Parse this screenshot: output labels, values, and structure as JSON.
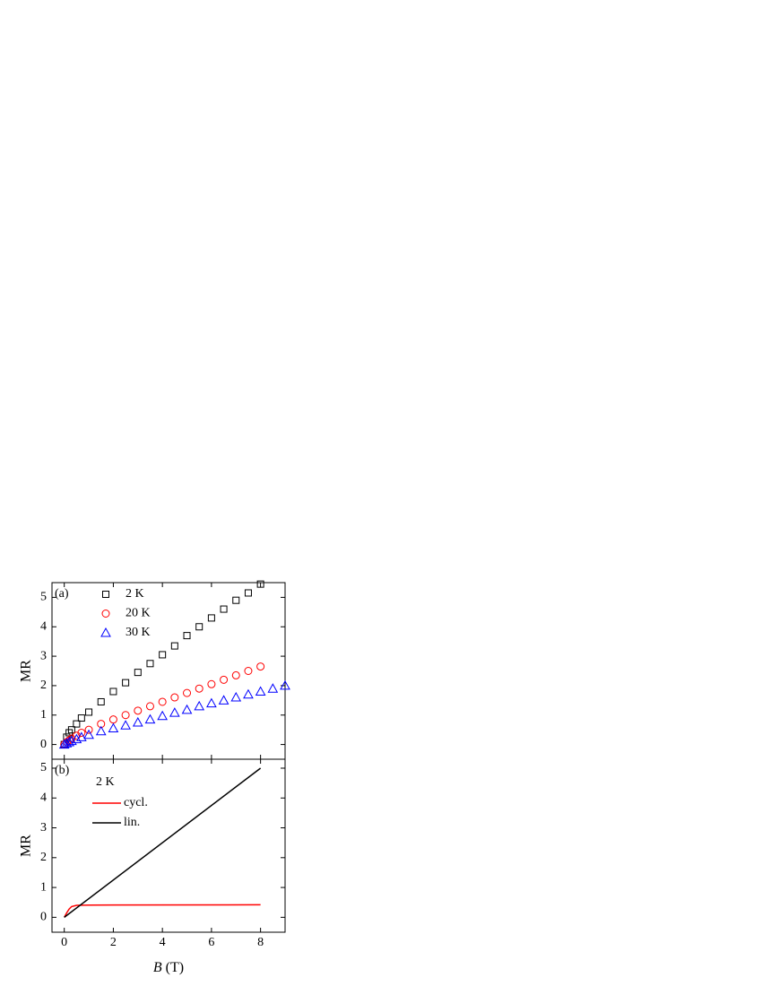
{
  "chart_data": [
    {
      "type": "scatter",
      "panel_label": "(a)",
      "ylabel": "MR",
      "xlim": [
        -0.5,
        9
      ],
      "ylim": [
        -0.5,
        5.5
      ],
      "xticks": [
        0,
        2,
        4,
        6,
        8
      ],
      "yticks": [
        0,
        1,
        2,
        3,
        4,
        5
      ],
      "series": [
        {
          "name": "2 K",
          "color": "#000000",
          "marker": "square",
          "x": [
            0,
            0.1,
            0.2,
            0.3,
            0.5,
            0.7,
            1,
            1.5,
            2,
            2.5,
            3,
            3.5,
            4,
            4.5,
            5,
            5.5,
            6,
            6.5,
            7,
            7.5,
            8
          ],
          "values": [
            0,
            0.25,
            0.4,
            0.5,
            0.7,
            0.9,
            1.1,
            1.45,
            1.8,
            2.1,
            2.45,
            2.75,
            3.05,
            3.35,
            3.7,
            4.0,
            4.3,
            4.6,
            4.9,
            5.15,
            5.45
          ]
        },
        {
          "name": "20 K",
          "color": "#ff0000",
          "marker": "circle",
          "x": [
            0,
            0.1,
            0.2,
            0.3,
            0.5,
            0.7,
            1,
            1.5,
            2,
            2.5,
            3,
            3.5,
            4,
            4.5,
            5,
            5.5,
            6,
            6.5,
            7,
            7.5,
            8
          ],
          "values": [
            0,
            0.08,
            0.14,
            0.2,
            0.3,
            0.4,
            0.5,
            0.7,
            0.85,
            1.0,
            1.15,
            1.3,
            1.45,
            1.6,
            1.75,
            1.9,
            2.05,
            2.2,
            2.35,
            2.5,
            2.65
          ]
        },
        {
          "name": "30 K",
          "color": "#0000ff",
          "marker": "triangle",
          "x": [
            0,
            0.1,
            0.2,
            0.3,
            0.5,
            0.7,
            1,
            1.5,
            2,
            2.5,
            3,
            3.5,
            4,
            4.5,
            5,
            5.5,
            6,
            6.5,
            7,
            7.5,
            8,
            8.5,
            9
          ],
          "values": [
            0,
            0.04,
            0.08,
            0.12,
            0.18,
            0.25,
            0.33,
            0.45,
            0.55,
            0.65,
            0.75,
            0.85,
            0.97,
            1.08,
            1.18,
            1.3,
            1.4,
            1.5,
            1.6,
            1.7,
            1.8,
            1.9,
            2.0
          ]
        }
      ]
    },
    {
      "type": "line",
      "panel_label": "(b)",
      "ylabel": "MR",
      "legend_title": "2 K",
      "xlabel_symbol": "B",
      "xlabel_unit": "(T)",
      "xlim": [
        -0.5,
        9
      ],
      "ylim": [
        -0.5,
        5.3
      ],
      "xticks": [
        0,
        2,
        4,
        6,
        8
      ],
      "yticks": [
        0,
        1,
        2,
        3,
        4,
        5
      ],
      "series": [
        {
          "name": "cycl.",
          "color": "#ff0000",
          "x": [
            0,
            0.1,
            0.2,
            0.3,
            0.5,
            1,
            8
          ],
          "values": [
            0,
            0.15,
            0.28,
            0.36,
            0.4,
            0.41,
            0.42
          ]
        },
        {
          "name": "lin.",
          "color": "#000000",
          "x": [
            0,
            8
          ],
          "values": [
            0,
            5.0
          ]
        }
      ]
    }
  ]
}
